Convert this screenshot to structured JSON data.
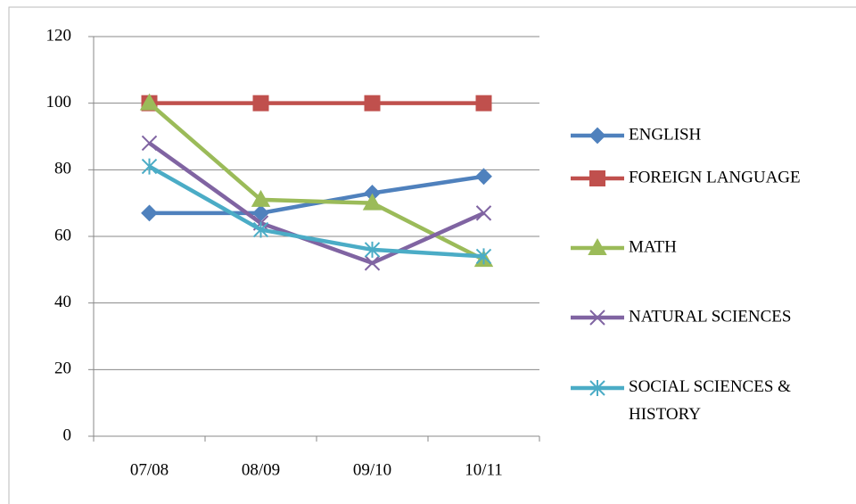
{
  "chart_data": {
    "type": "line",
    "categories": [
      "07/08",
      "08/09",
      "09/10",
      "10/11"
    ],
    "series": [
      {
        "name": "ENGLISH",
        "color": "#4f81bd",
        "marker": "diamond",
        "values": [
          67,
          67,
          73,
          78
        ]
      },
      {
        "name": "FOREIGN LANGUAGE",
        "color": "#c0504d",
        "marker": "square",
        "values": [
          100,
          100,
          100,
          100
        ]
      },
      {
        "name": "MATH",
        "color": "#9bbb59",
        "marker": "triangle",
        "values": [
          100,
          71,
          70,
          53
        ]
      },
      {
        "name": "NATURAL SCIENCES",
        "color": "#8064a2",
        "marker": "x",
        "values": [
          88,
          64,
          52,
          67
        ]
      },
      {
        "name": "SOCIAL SCIENCES & HISTORY",
        "color": "#4bacc6",
        "marker": "star",
        "values": [
          81,
          62,
          56,
          54
        ]
      }
    ],
    "ylim": [
      0,
      120
    ],
    "yticks": [
      0,
      20,
      40,
      60,
      80,
      100,
      120
    ],
    "grid": true,
    "legend": "right"
  }
}
